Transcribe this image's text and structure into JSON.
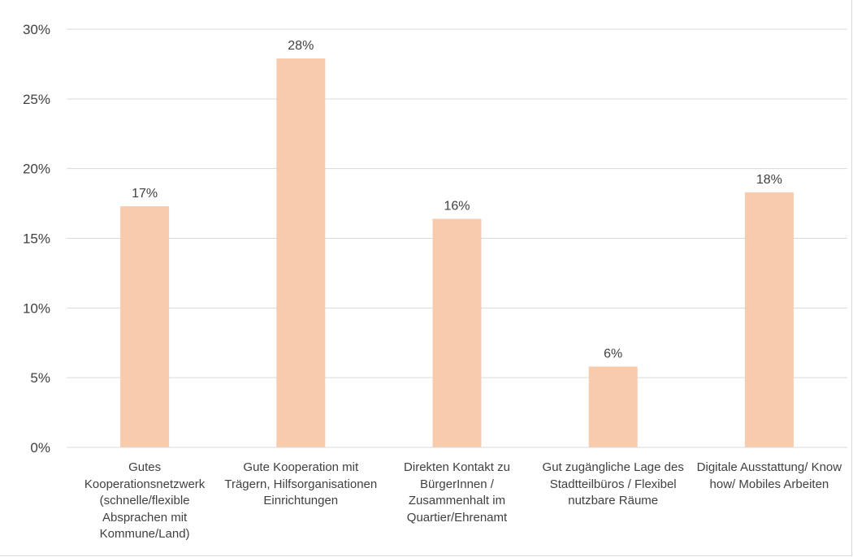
{
  "chart_data": {
    "type": "bar",
    "title": "",
    "xlabel": "",
    "ylabel": "",
    "categories": [
      "Gutes Kooperationsnetzwerk (schnelle/flexible Absprachen mit Kommune/Land)",
      "Gute Kooperation mit Trägern, Hilfsorganisationen Einrichtungen",
      "Direkten Kontakt zu BürgerInnen / Zusammenhalt im Quartier/Ehrenamt",
      "Gut zugängliche Lage des Stadtteilbüros / Flexibel nutzbare Räume",
      "Digitale Ausstattung/ Know how/ Mobiles Arbeiten"
    ],
    "values": [
      17.3,
      27.9,
      16.4,
      5.8,
      18.3
    ],
    "data_labels": [
      "17%",
      "28%",
      "16%",
      "6%",
      "18%"
    ],
    "ylim": [
      0,
      30
    ],
    "yticks": [
      0,
      5,
      10,
      15,
      20,
      25,
      30
    ],
    "ytick_labels": [
      "0%",
      "5%",
      "10%",
      "15%",
      "20%",
      "25%",
      "30%"
    ],
    "grid": true,
    "legend": "none",
    "colors": {
      "bar": "#F8CBAD",
      "grid": "#d9d9d9",
      "text": "#404040"
    }
  }
}
